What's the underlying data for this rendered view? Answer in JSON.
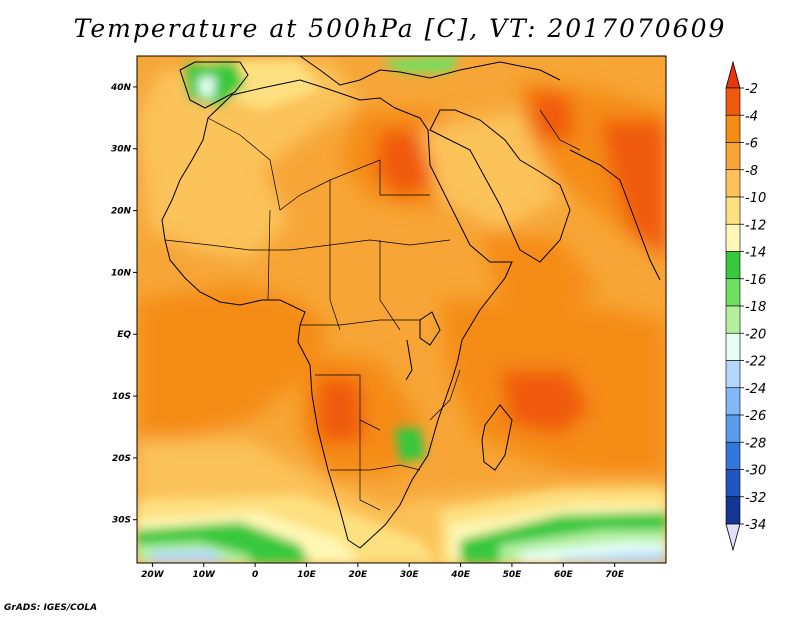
{
  "title": "Temperature at 500hPa [C], VT: 2017070609",
  "credit": "GrADS: IGES/COLA",
  "map": {
    "region": "Africa",
    "variable": "Temperature at 500hPa",
    "units": "C",
    "valid_time": "2017070609",
    "lon_range": [
      -23,
      80
    ],
    "lat_range": [
      -37,
      45
    ],
    "lat_ticks": [
      {
        "value": 40,
        "label": "40N"
      },
      {
        "value": 30,
        "label": "30N"
      },
      {
        "value": 20,
        "label": "20N"
      },
      {
        "value": 10,
        "label": "10N"
      },
      {
        "value": 0,
        "label": "EQ"
      },
      {
        "value": -10,
        "label": "10S"
      },
      {
        "value": -20,
        "label": "20S"
      },
      {
        "value": -30,
        "label": "30S"
      }
    ],
    "lon_ticks": [
      {
        "value": -20,
        "label": "20W"
      },
      {
        "value": -10,
        "label": "10W"
      },
      {
        "value": 0,
        "label": "0"
      },
      {
        "value": 10,
        "label": "10E"
      },
      {
        "value": 20,
        "label": "20E"
      },
      {
        "value": 30,
        "label": "30E"
      },
      {
        "value": 40,
        "label": "40E"
      },
      {
        "value": 50,
        "label": "50E"
      },
      {
        "value": 60,
        "label": "60E"
      },
      {
        "value": 70,
        "label": "70E"
      }
    ]
  },
  "colorbar": {
    "over_color": "#e8380a",
    "under_color": "#e0e0ff",
    "bins": [
      {
        "label": "-2",
        "color": "#f05a0f"
      },
      {
        "label": "-4",
        "color": "#f58c14"
      },
      {
        "label": "-6",
        "color": "#f7a537"
      },
      {
        "label": "-8",
        "color": "#fbc35a"
      },
      {
        "label": "-10",
        "color": "#fde080"
      },
      {
        "label": "-12",
        "color": "#fff7b5"
      },
      {
        "label": "-14",
        "color": "#37c83c"
      },
      {
        "label": "-16",
        "color": "#6ee060"
      },
      {
        "label": "-18",
        "color": "#b4f0a0"
      },
      {
        "label": "-20",
        "color": "#e6fff5"
      },
      {
        "label": "-22",
        "color": "#b4d7ff"
      },
      {
        "label": "-24",
        "color": "#82b8f5"
      },
      {
        "label": "-26",
        "color": "#5a9bea"
      },
      {
        "label": "-28",
        "color": "#3278dc"
      },
      {
        "label": "-30",
        "color": "#1e55be"
      },
      {
        "label": "-32",
        "color": "#143796"
      },
      {
        "label": "-34",
        "color": "#0a1e6e"
      }
    ]
  }
}
